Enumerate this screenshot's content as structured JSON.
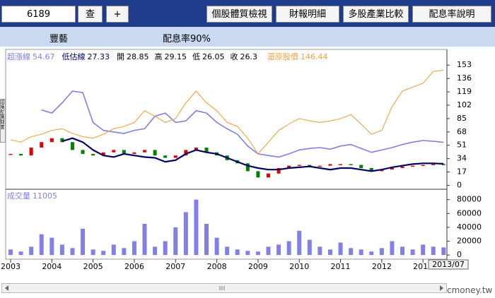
{
  "header": {
    "stock_code": "6189",
    "buttons": [
      "查",
      "+"
    ],
    "nav": [
      "個股體質檢視",
      "財報明細",
      "多股產業比較",
      "配息率說明"
    ]
  },
  "info": {
    "name": "豐藝",
    "dividend": "配息率90%",
    "side_label": "切換左側刻度",
    "watermark": "cmoney.tw",
    "last_date": "2013/07"
  },
  "chart_data": [
    {
      "type": "line",
      "x": [
        2003,
        2003.25,
        2003.5,
        2003.75,
        2004,
        2004.25,
        2004.5,
        2004.75,
        2005,
        2005.25,
        2005.5,
        2005.75,
        2006,
        2006.25,
        2006.5,
        2006.75,
        2007,
        2007.25,
        2007.5,
        2007.75,
        2008,
        2008.25,
        2008.5,
        2008.75,
        2009,
        2009.25,
        2009.5,
        2009.75,
        2010,
        2010.25,
        2010.5,
        2010.75,
        2011,
        2011.25,
        2011.5,
        2011.75,
        2012,
        2012.25,
        2012.5,
        2012.75,
        2013,
        2013.25,
        2013.5
      ],
      "xlim": [
        2002.88,
        2013.58
      ],
      "xticks": [
        2003,
        2004,
        2005,
        2006,
        2007,
        2008,
        2009,
        2010,
        2011,
        2012,
        2013
      ],
      "ylim": [
        -5,
        173
      ],
      "yticks": [
        0,
        17,
        34,
        51,
        68,
        85,
        102,
        119,
        136,
        153
      ],
      "series": [
        {
          "name": "超漲線",
          "color": "#7f7fe6",
          "values": [
            null,
            null,
            null,
            96,
            92,
            105,
            120,
            118,
            80,
            70,
            68,
            66,
            70,
            72,
            88,
            92,
            80,
            82,
            95,
            92,
            80,
            72,
            65,
            50,
            40,
            38,
            36,
            40,
            45,
            47,
            48,
            46,
            50,
            52,
            47,
            42,
            45,
            48,
            52,
            55,
            57,
            56,
            54.67
          ]
        },
        {
          "name": "低估線",
          "color": "#000066",
          "values": [
            null,
            null,
            null,
            null,
            null,
            56,
            60,
            55,
            45,
            38,
            36,
            40,
            38,
            36,
            35,
            30,
            32,
            40,
            45,
            42,
            40,
            35,
            30,
            25,
            22,
            20,
            20,
            22,
            23,
            24,
            22,
            20,
            22,
            22,
            20,
            18,
            20,
            23,
            25,
            27,
            28,
            28,
            27.33
          ]
        },
        {
          "name": "還原股價",
          "color": "#f0a040",
          "values": [
            58,
            55,
            62,
            65,
            70,
            72,
            66,
            62,
            60,
            65,
            72,
            75,
            80,
            95,
            88,
            80,
            85,
            105,
            120,
            105,
            95,
            80,
            75,
            60,
            40,
            55,
            70,
            78,
            85,
            82,
            80,
            82,
            85,
            90,
            78,
            65,
            70,
            100,
            120,
            125,
            130,
            145,
            146.44
          ]
        }
      ],
      "candles": {
        "up_color": "#e00000",
        "down_color": "#008000",
        "close": [
          40,
          38,
          48,
          55,
          60,
          55,
          45,
          40,
          38,
          42,
          45,
          40,
          42,
          45,
          38,
          35,
          38,
          45,
          48,
          42,
          38,
          32,
          28,
          18,
          10,
          15,
          22,
          25,
          26,
          24,
          25,
          27,
          27,
          26,
          22,
          18,
          20,
          22,
          24,
          25,
          26,
          27,
          26.3
        ]
      },
      "ohlc_labels": [
        "開",
        "高",
        "低",
        "收"
      ],
      "open": 28.85,
      "high": 29.15,
      "low": 26.05
    },
    {
      "type": "bar",
      "x": [
        2003,
        2003.25,
        2003.5,
        2003.75,
        2004,
        2004.25,
        2004.5,
        2004.75,
        2005,
        2005.25,
        2005.5,
        2005.75,
        2006,
        2006.25,
        2006.5,
        2006.75,
        2007,
        2007.25,
        2007.5,
        2007.75,
        2008,
        2008.25,
        2008.5,
        2008.75,
        2009,
        2009.25,
        2009.5,
        2009.75,
        2010,
        2010.25,
        2010.5,
        2010.75,
        2011,
        2011.25,
        2011.5,
        2011.75,
        2012,
        2012.25,
        2012.5,
        2012.75,
        2013,
        2013.25,
        2013.5
      ],
      "xlim": [
        2002.88,
        2013.58
      ],
      "ylim": [
        -6000,
        95000
      ],
      "yticks": [
        0,
        20000,
        40000,
        60000,
        80000
      ],
      "series": [
        {
          "name": "成交量",
          "color": "#8080e8",
          "values": [
            8000,
            5000,
            12000,
            30000,
            25000,
            15000,
            10000,
            38000,
            8000,
            6000,
            15000,
            10000,
            20000,
            45000,
            12000,
            20000,
            40000,
            62000,
            80000,
            45000,
            25000,
            12000,
            8000,
            6000,
            5000,
            12000,
            15000,
            20000,
            35000,
            22000,
            12000,
            8000,
            18000,
            10000,
            8000,
            5000,
            10000,
            20000,
            12000,
            8000,
            15000,
            12000,
            11005
          ]
        }
      ]
    }
  ]
}
